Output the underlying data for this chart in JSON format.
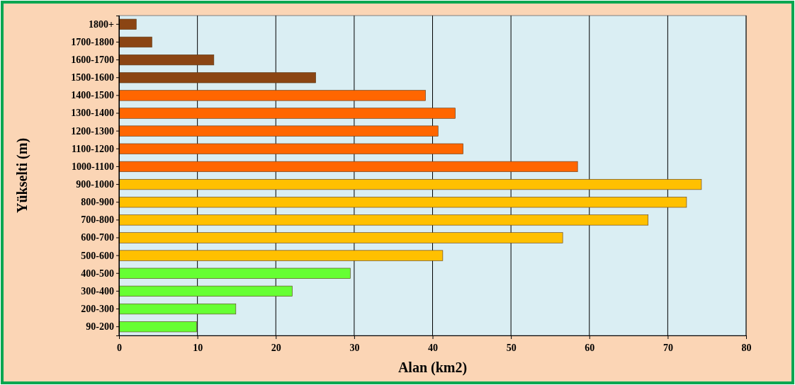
{
  "chart_data": {
    "type": "bar",
    "orientation": "horizontal",
    "xlabel": "Alan (km2)",
    "ylabel": "Yükselti (m)",
    "categories": [
      "1800+",
      "1700-1800",
      "1600-1700",
      "1500-1600",
      "1400-1500",
      "1300-1400",
      "1200-1300",
      "1100-1200",
      "1000-1100",
      "900-1000",
      "800-900",
      "700-800",
      "600-700",
      "500-600",
      "400-500",
      "300-400",
      "200-300",
      "90-200"
    ],
    "values": [
      2.2,
      4.2,
      12.1,
      25.1,
      39.1,
      42.9,
      40.7,
      43.9,
      58.5,
      74.3,
      72.4,
      67.5,
      56.6,
      41.3,
      29.5,
      22.1,
      14.9,
      9.9
    ],
    "colors": [
      "#8b4513",
      "#8b4513",
      "#8b4513",
      "#8b4513",
      "#ff6600",
      "#ff6600",
      "#ff6600",
      "#ff6600",
      "#ff6600",
      "#ffc000",
      "#ffc000",
      "#ffc000",
      "#ffc000",
      "#ffc000",
      "#66ff33",
      "#66ff33",
      "#66ff33",
      "#66ff33"
    ],
    "xlim": [
      0,
      80
    ],
    "xticks": [
      0,
      10,
      20,
      30,
      40,
      50,
      60,
      70,
      80
    ],
    "grid": "x"
  }
}
